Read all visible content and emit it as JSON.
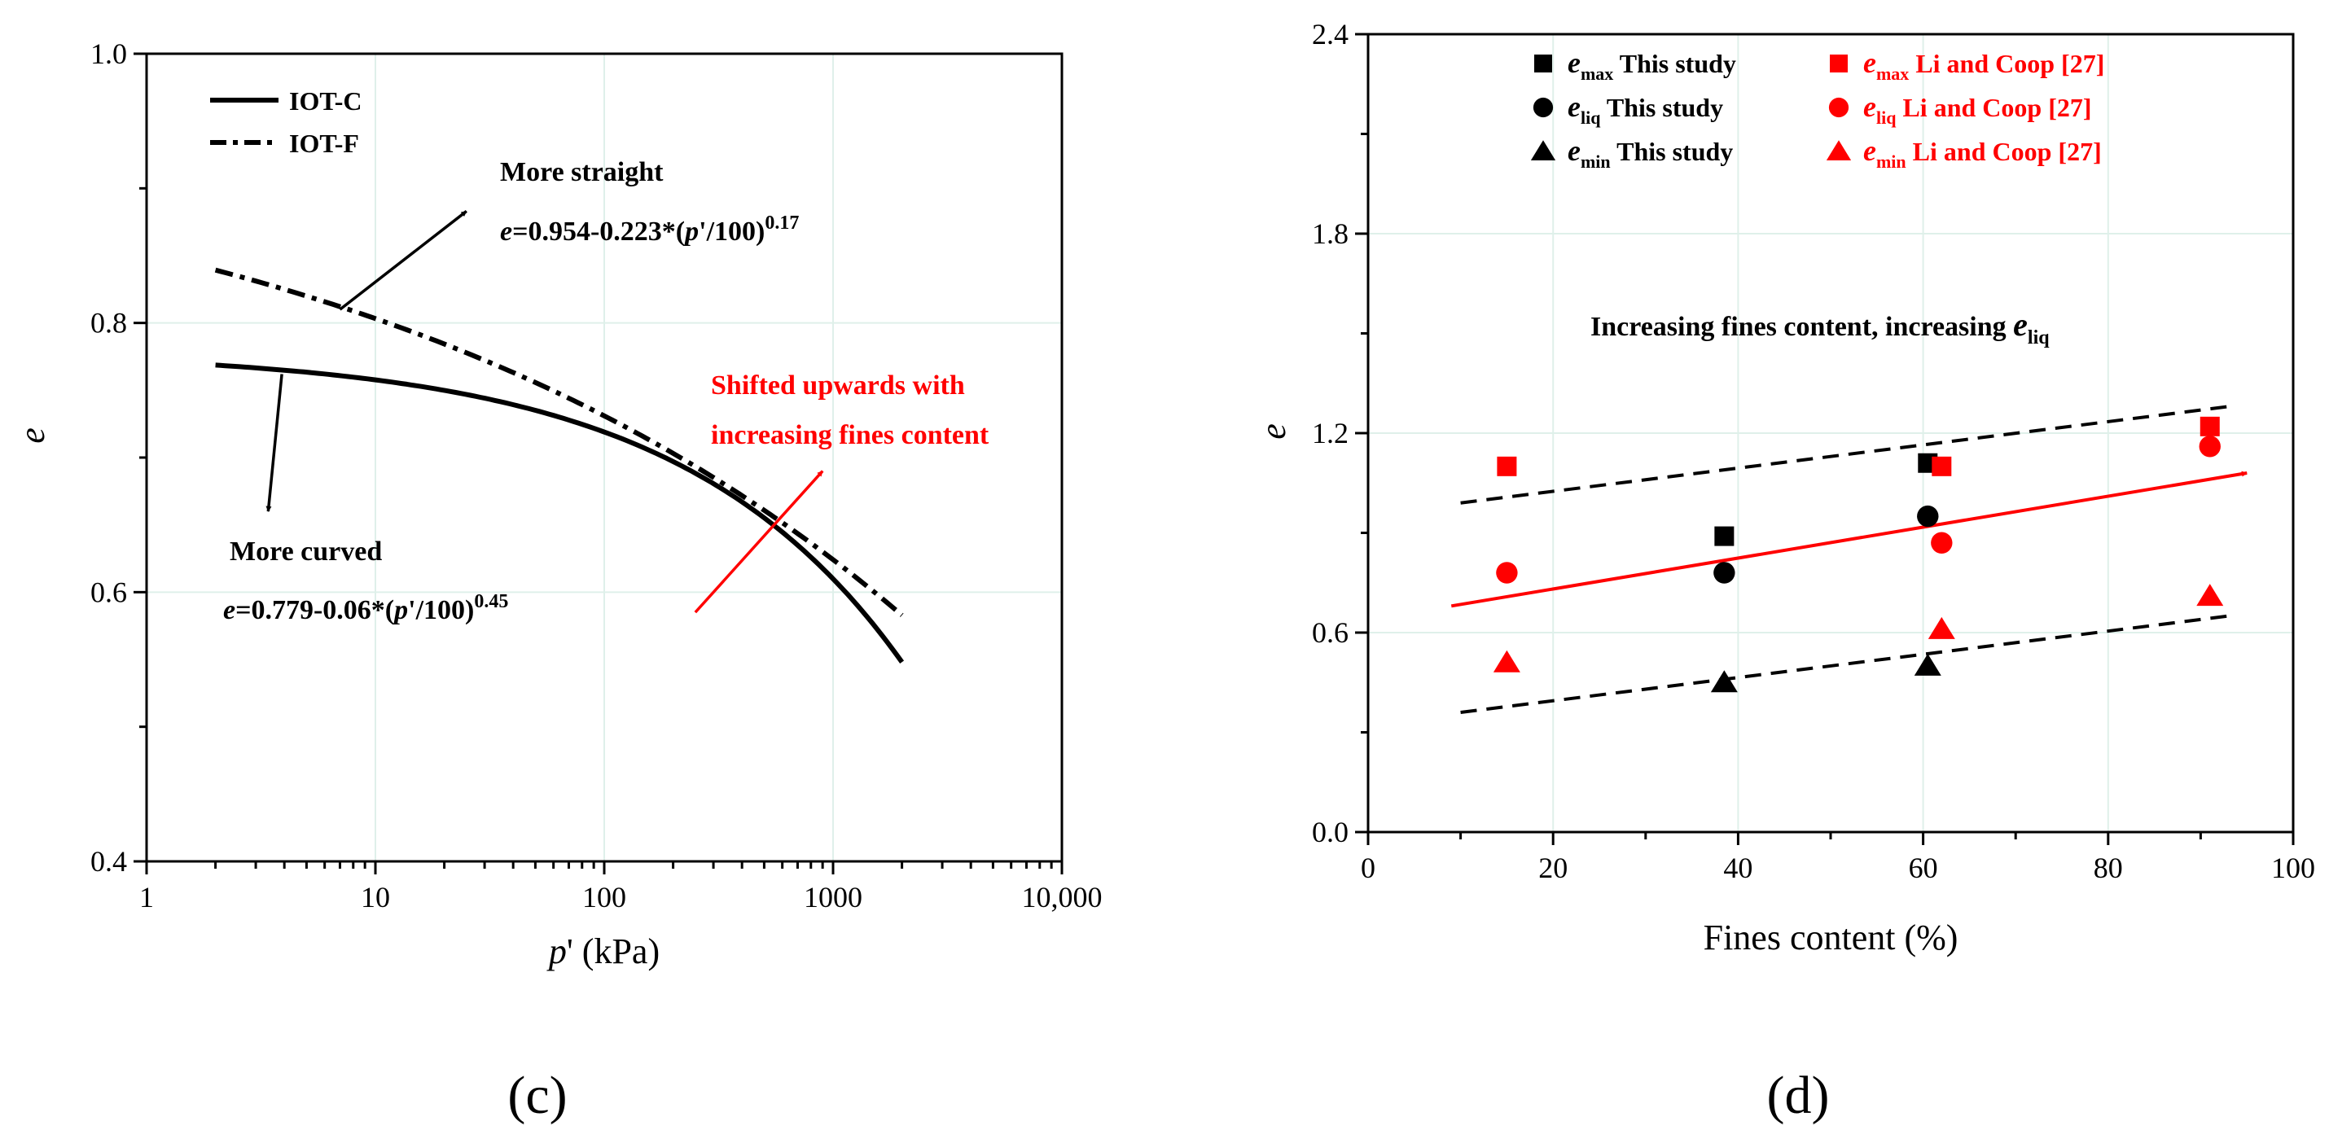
{
  "panel_labels": {
    "c": "(c)",
    "d": "(d)"
  },
  "chart_data": [
    {
      "id": "c",
      "type": "line",
      "xscale": "log",
      "xlabel_var": "p",
      "xlabel_rest": "' (kPa)",
      "ylabel": "e",
      "xlim": [
        1,
        10000
      ],
      "ylim": [
        0.4,
        1.0
      ],
      "xticks": [
        1,
        10,
        100,
        1000,
        10000
      ],
      "xtick_labels": [
        "1",
        "10",
        "100",
        "1000",
        "10,000"
      ],
      "yticks": [
        0.4,
        0.6,
        0.8,
        1.0
      ],
      "ytick_labels": [
        "0.4",
        "0.6",
        "0.8",
        "1.0"
      ],
      "yminor": [
        0.5,
        0.7,
        0.9
      ],
      "legend": [
        {
          "name": "IOT-C",
          "style": "solid"
        },
        {
          "name": "IOT-F",
          "style": "dashdot"
        }
      ],
      "series": [
        {
          "name": "IOT-C",
          "style": "solid",
          "p_range": [
            2,
            2000
          ],
          "a": 0.779,
          "b": 0.06,
          "n": 0.45
        },
        {
          "name": "IOT-F",
          "style": "dashdot",
          "p_range": [
            2,
            2000
          ],
          "a": 0.954,
          "b": 0.223,
          "n": 0.17
        }
      ],
      "annotations": {
        "straight_title": "More straight",
        "straight_eq_var": "e",
        "straight_eq_1": "=0.954-0.223*(",
        "straight_eq_var2": "p",
        "straight_eq_2": "'/100)",
        "straight_eq_exp": "0.17",
        "curved_title": "More curved",
        "curved_eq_var": "e",
        "curved_eq_1": "=0.779-0.06*(",
        "curved_eq_var2": "p",
        "curved_eq_2": "'/100)",
        "curved_eq_exp": "0.45",
        "shift_line1": "Shifted upwards with",
        "shift_line2": "increasing fines content"
      },
      "arrows": {
        "straight": {
          "from": [
            7,
            0.81
          ],
          "to": [
            25,
            0.883
          ]
        },
        "curved": {
          "from": [
            3.9,
            0.762
          ],
          "to": [
            3.4,
            0.66
          ]
        },
        "shift": {
          "from": [
            250,
            0.585
          ],
          "to": [
            900,
            0.69
          ]
        }
      }
    },
    {
      "id": "d",
      "type": "scatter",
      "xlabel": "Fines content (%)",
      "ylabel": "e",
      "xlim": [
        0,
        100
      ],
      "ylim": [
        0,
        2.4
      ],
      "xticks": [
        0,
        20,
        40,
        60,
        80,
        100
      ],
      "xtick_labels": [
        "0",
        "20",
        "40",
        "60",
        "80",
        "100"
      ],
      "yticks": [
        0,
        0.6,
        1.2,
        1.8,
        2.4
      ],
      "ytick_labels": [
        "0.0",
        "0.6",
        "1.2",
        "1.8",
        "2.4"
      ],
      "series": [
        {
          "name": "emax This study",
          "sym": "e",
          "sub": "max",
          "label": " This study",
          "marker": "square",
          "color": "#000000",
          "points": [
            [
              38.5,
              0.89
            ],
            [
              60.5,
              1.11
            ]
          ]
        },
        {
          "name": "eliq This study",
          "sym": "e",
          "sub": "liq",
          "label": " This study",
          "marker": "circle",
          "color": "#000000",
          "points": [
            [
              38.5,
              0.78
            ],
            [
              60.5,
              0.95
            ]
          ]
        },
        {
          "name": "emin This study",
          "sym": "e",
          "sub": "min",
          "label": " This study",
          "marker": "triangle",
          "color": "#000000",
          "points": [
            [
              38.5,
              0.45
            ],
            [
              60.5,
              0.5
            ]
          ]
        },
        {
          "name": "emax Li and Coop [27]",
          "sym": "e",
          "sub": "max",
          "label": " Li and Coop [27]",
          "marker": "square",
          "color": "#ff0000",
          "points": [
            [
              15,
              1.1
            ],
            [
              62,
              1.1
            ],
            [
              91,
              1.22
            ]
          ]
        },
        {
          "name": "eliq Li and Coop [27]",
          "sym": "e",
          "sub": "liq",
          "label": " Li and Coop [27]",
          "marker": "circle",
          "color": "#ff0000",
          "points": [
            [
              15,
              0.78
            ],
            [
              62,
              0.87
            ],
            [
              91,
              1.16
            ]
          ]
        },
        {
          "name": "emin Li and Coop [27]",
          "sym": "e",
          "sub": "min",
          "label": " Li and Coop [27]",
          "marker": "triangle",
          "color": "#ff0000",
          "points": [
            [
              15,
              0.51
            ],
            [
              62,
              0.61
            ],
            [
              91,
              0.71
            ]
          ]
        }
      ],
      "trend_lines": [
        {
          "name": "upper dashed",
          "style": "dashed",
          "color": "#000000",
          "from": [
            10,
            0.99
          ],
          "to": [
            93,
            1.28
          ]
        },
        {
          "name": "lower dashed",
          "style": "dashed",
          "color": "#000000",
          "from": [
            10,
            0.36
          ],
          "to": [
            93,
            0.65
          ]
        },
        {
          "name": "red arrow",
          "style": "arrow",
          "color": "#ff0000",
          "from": [
            9,
            0.68
          ],
          "to": [
            95,
            1.08
          ]
        }
      ],
      "annotation": {
        "text": "Increasing fines content, increasing ",
        "sym": "e",
        "sub": "liq"
      }
    }
  ]
}
